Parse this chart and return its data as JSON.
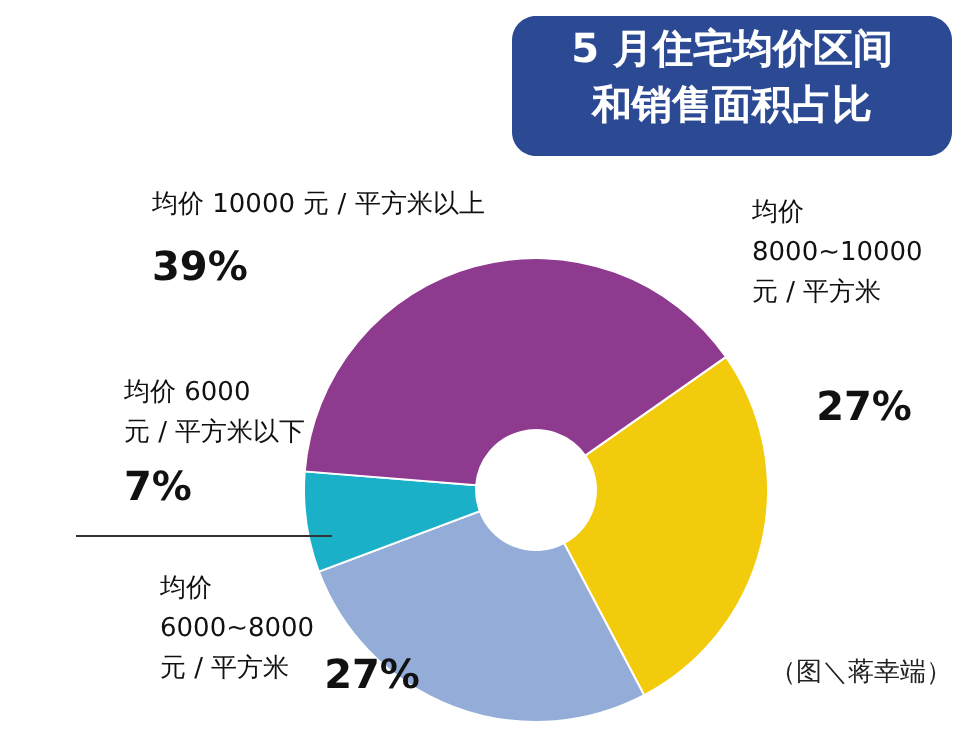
{
  "chart_data": {
    "type": "donut",
    "title": "5 月住宅均价区间和销售面积占比",
    "categories": [
      "均价 8000~10000 元 / 平方米",
      "均价 6000~8000 元 / 平方米",
      "均价 6000 元 / 平方米以下",
      "均价 10000 元 / 平方米以上"
    ],
    "values": [
      27,
      27,
      7,
      39
    ],
    "value_labels": [
      "27%",
      "27%",
      "7%",
      "39%"
    ],
    "colors": [
      "#f2cc0c",
      "#93acd8",
      "#1ab0c8",
      "#8e3a8e"
    ],
    "annotations": [
      "（图＼蒋幸端）"
    ]
  }
}
